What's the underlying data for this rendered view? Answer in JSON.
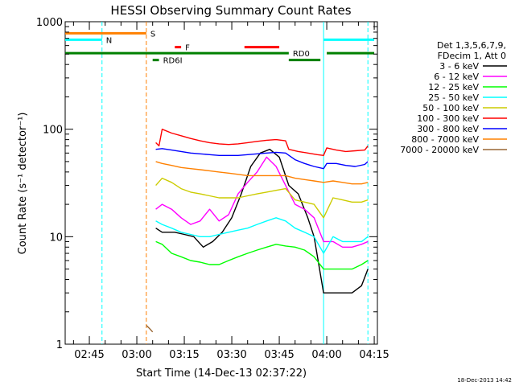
{
  "title": "HESSI Observing Summary Count Rates",
  "timestamp": "18-Dec-2013 14:42",
  "chart_data": {
    "type": "line",
    "title": "HESSI Observing Summary Count Rates",
    "xlabel": "Start Time (14-Dec-13 02:37:22)",
    "ylabel": "Count Rate (s⁻¹ detector⁻¹)",
    "y_scale": "log",
    "ylim": [
      1,
      1000
    ],
    "xlim": [
      "02:37:22",
      "04:16:00"
    ],
    "x_ticks": [
      "02:45",
      "03:00",
      "03:15",
      "03:30",
      "03:45",
      "04:00",
      "04:15"
    ],
    "y_ticks": [
      "1",
      "10",
      "100",
      "1000"
    ],
    "grid": false,
    "legend_position": "right",
    "legend_header": [
      "Det 1,3,5,6,7,9,",
      "FDecim 1, Att 0"
    ],
    "series": [
      {
        "name": "3 - 6 keV",
        "color": "#000000",
        "x": [
          "03:06",
          "03:08",
          "03:12",
          "03:15",
          "03:18",
          "03:21",
          "03:24",
          "03:27",
          "03:30",
          "03:33",
          "03:36",
          "03:39",
          "03:42",
          "03:45",
          "03:48",
          "03:51",
          "03:54",
          "03:56",
          "03:59",
          "04:02",
          "04:05",
          "04:08",
          "04:11",
          "04:13"
        ],
        "y": [
          12,
          11,
          11,
          10.5,
          10,
          8,
          9,
          11,
          15,
          25,
          45,
          60,
          65,
          55,
          30,
          25,
          15,
          10,
          3,
          3,
          3,
          3,
          3.5,
          5
        ]
      },
      {
        "name": "6 - 12 keV",
        "color": "#ff00ff",
        "x": [
          "03:06",
          "03:08",
          "03:11",
          "03:14",
          "03:17",
          "03:20",
          "03:23",
          "03:26",
          "03:29",
          "03:32",
          "03:35",
          "03:38",
          "03:41",
          "03:44",
          "03:47",
          "03:50",
          "03:53",
          "03:56",
          "03:59",
          "04:02",
          "04:05",
          "04:08",
          "04:11",
          "04:13"
        ],
        "y": [
          18,
          20,
          18,
          15,
          13,
          14,
          18,
          14,
          16,
          25,
          32,
          40,
          55,
          45,
          30,
          20,
          18,
          15,
          9,
          9,
          8,
          8,
          8.5,
          9
        ]
      },
      {
        "name": "12 - 25 keV",
        "color": "#00ff00",
        "x": [
          "03:06",
          "03:08",
          "03:11",
          "03:14",
          "03:17",
          "03:20",
          "03:23",
          "03:26",
          "03:29",
          "03:32",
          "03:35",
          "03:38",
          "03:41",
          "03:44",
          "03:47",
          "03:50",
          "03:53",
          "03:56",
          "03:59",
          "04:02",
          "04:05",
          "04:08",
          "04:11",
          "04:13"
        ],
        "y": [
          9,
          8.5,
          7,
          6.5,
          6,
          5.8,
          5.5,
          5.5,
          6,
          6.5,
          7,
          7.5,
          8,
          8.5,
          8.2,
          8,
          7.5,
          6.5,
          5,
          5,
          5,
          5,
          5.5,
          6
        ]
      },
      {
        "name": "25 - 50 keV",
        "color": "#00ffff",
        "x": [
          "03:06",
          "03:08",
          "03:11",
          "03:14",
          "03:17",
          "03:20",
          "03:23",
          "03:26",
          "03:29",
          "03:32",
          "03:35",
          "03:38",
          "03:41",
          "03:44",
          "03:47",
          "03:50",
          "03:53",
          "03:56",
          "03:59",
          "04:02",
          "04:05",
          "04:08",
          "04:11",
          "04:13"
        ],
        "y": [
          14,
          13,
          12,
          11,
          10.5,
          10,
          10,
          10.5,
          11,
          11.5,
          12,
          13,
          14,
          15,
          14,
          12,
          11,
          10,
          7,
          10,
          9,
          9,
          9,
          10
        ]
      },
      {
        "name": "50 - 100 keV",
        "color": "#cccc00",
        "x": [
          "03:06",
          "03:08",
          "03:11",
          "03:14",
          "03:17",
          "03:20",
          "03:23",
          "03:26",
          "03:29",
          "03:32",
          "03:35",
          "03:38",
          "03:41",
          "03:44",
          "03:47",
          "03:50",
          "03:53",
          "03:56",
          "03:59",
          "04:02",
          "04:05",
          "04:08",
          "04:11",
          "04:13"
        ],
        "y": [
          30,
          35,
          32,
          28,
          26,
          25,
          24,
          23,
          23,
          23,
          24,
          25,
          26,
          27,
          28,
          22,
          21,
          20,
          15,
          23,
          22,
          21,
          21,
          22
        ]
      },
      {
        "name": "100 - 300 keV",
        "color": "#ff0000",
        "x": [
          "03:06",
          "03:07",
          "03:08",
          "03:11",
          "03:14",
          "03:17",
          "03:20",
          "03:23",
          "03:26",
          "03:29",
          "03:32",
          "03:35",
          "03:38",
          "03:41",
          "03:44",
          "03:47",
          "03:48",
          "03:51",
          "03:54",
          "03:57",
          "03:59",
          "04:00",
          "04:03",
          "04:06",
          "04:09",
          "04:12",
          "04:13"
        ],
        "y": [
          75,
          70,
          100,
          92,
          87,
          82,
          78,
          75,
          73,
          72,
          73,
          75,
          77,
          79,
          80,
          78,
          65,
          62,
          60,
          58,
          57,
          67,
          64,
          62,
          63,
          64,
          70
        ]
      },
      {
        "name": "300 - 800 keV",
        "color": "#0000ff",
        "x": [
          "03:06",
          "03:08",
          "03:11",
          "03:14",
          "03:17",
          "03:20",
          "03:23",
          "03:26",
          "03:29",
          "03:32",
          "03:35",
          "03:38",
          "03:41",
          "03:44",
          "03:47",
          "03:50",
          "03:53",
          "03:56",
          "03:59",
          "04:00",
          "04:03",
          "04:06",
          "04:09",
          "04:12",
          "04:13"
        ],
        "y": [
          65,
          66,
          64,
          62,
          60,
          59,
          58,
          57,
          57,
          57,
          58,
          59,
          60,
          61,
          60,
          52,
          48,
          45,
          43,
          48,
          48,
          46,
          45,
          47,
          50
        ]
      },
      {
        "name": "800 - 7000 keV",
        "color": "#ff8000",
        "x": [
          "03:06",
          "03:08",
          "03:11",
          "03:14",
          "03:17",
          "03:20",
          "03:23",
          "03:26",
          "03:29",
          "03:32",
          "03:35",
          "03:38",
          "03:41",
          "03:44",
          "03:47",
          "03:50",
          "03:53",
          "03:56",
          "03:59",
          "04:02",
          "04:05",
          "04:08",
          "04:11",
          "04:13"
        ],
        "y": [
          50,
          48,
          46,
          44,
          43,
          42,
          41,
          40,
          39,
          38,
          37,
          37,
          37,
          37,
          37,
          35,
          34,
          33,
          32,
          33,
          32,
          31,
          31,
          32
        ]
      },
      {
        "name": "7000 - 20000 keV",
        "color": "#996633",
        "x": [
          "03:03",
          "03:04",
          "03:05"
        ],
        "y": [
          1.5,
          1.4,
          1.3
        ]
      }
    ],
    "flags": [
      {
        "label": "S",
        "color": "#ff8000",
        "level": 780,
        "label_color": "#ff8000",
        "start": "02:37:22",
        "end": "03:03"
      },
      {
        "label": "N",
        "color": "#00ffff",
        "level": 680,
        "label_color": "#00ffff",
        "start": "02:37:22",
        "end": "02:49"
      },
      {
        "label": "N",
        "color": "#00ffff",
        "level": 680,
        "label_color": "#00ffff",
        "start": "03:59",
        "end": "04:15"
      },
      {
        "label": "F",
        "color": "#ff0000",
        "level": 580,
        "label_color": "#ff0000",
        "start": "03:12",
        "end": "03:14"
      },
      {
        "label": "F",
        "color": "#ff0000",
        "level": 580,
        "label_color": "#ff0000",
        "start": "03:34",
        "end": "03:45"
      },
      {
        "label": "RD0",
        "color": "#008000",
        "level": 510,
        "label_color": "#008000",
        "start": "02:37:22",
        "end": "03:48"
      },
      {
        "label": "RD0",
        "color": "#008000",
        "level": 510,
        "label_color": "#008000",
        "start": "04:00",
        "end": "04:15"
      },
      {
        "label": "RD6I",
        "color": "#008000",
        "level": 440,
        "label_color": "#008000",
        "start": "03:05",
        "end": "03:07"
      },
      {
        "label": "RD6I",
        "color": "#008000",
        "level": 440,
        "label_color": "#008000",
        "start": "03:48",
        "end": "03:58"
      }
    ],
    "vlines": [
      {
        "time": "02:49",
        "color": "#00ffff",
        "style": "dashed"
      },
      {
        "time": "03:03",
        "color": "#ff8000",
        "style": "dashed"
      },
      {
        "time": "03:59",
        "color": "#00ffff",
        "style": "solid"
      },
      {
        "time": "04:13",
        "color": "#00ffff",
        "style": "dashed"
      }
    ]
  }
}
